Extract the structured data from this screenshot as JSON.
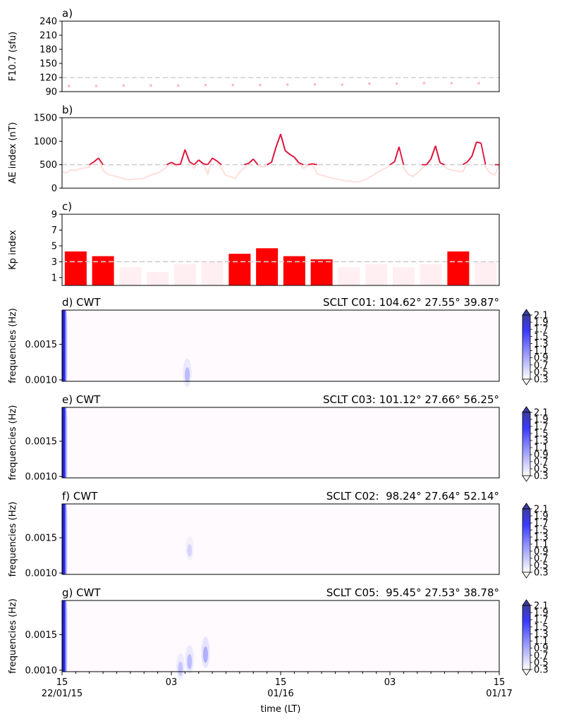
{
  "chart_data": [
    {
      "type": "scatter",
      "panel_label": "a)",
      "ylabel": "F10.7 (sfu)",
      "ylim": [
        90,
        240
      ],
      "yticks": [
        90,
        120,
        150,
        180,
        210,
        240
      ],
      "threshold": 120,
      "color": "#ffb6c1",
      "x_hours": [
        3,
        15,
        27,
        39,
        51,
        63,
        75,
        87,
        99,
        111,
        123,
        135,
        147,
        159,
        171,
        183
      ],
      "values": [
        102,
        102,
        103,
        103,
        103,
        104,
        104,
        104,
        105,
        105,
        105,
        107,
        107,
        108,
        108,
        108
      ]
    },
    {
      "type": "line",
      "panel_label": "b)",
      "ylabel": "AE index (nT)",
      "ylim": [
        0,
        1500
      ],
      "yticks": [
        0,
        500,
        1000,
        1500
      ],
      "threshold": 500,
      "color_low": "#ffdcd8",
      "color_high": "#dc143c",
      "x_hours": [
        0,
        2,
        4,
        6,
        8,
        10,
        12,
        14,
        16,
        18,
        20,
        22,
        24,
        26,
        28,
        30,
        32,
        34,
        36,
        38,
        40,
        42,
        44,
        46,
        48,
        50,
        52,
        54,
        56,
        58,
        60,
        62,
        64,
        66,
        68,
        70,
        72,
        74,
        76,
        78,
        80,
        82,
        84,
        86,
        88,
        90,
        92,
        94,
        96,
        98,
        100,
        102,
        104,
        106,
        108,
        110,
        112,
        114,
        116,
        118,
        120,
        122,
        124,
        126,
        128,
        130,
        132,
        134,
        136,
        138,
        140,
        142,
        144,
        146,
        148,
        150,
        152,
        154,
        156,
        158,
        160,
        162,
        164,
        166,
        168,
        170,
        172,
        174,
        176,
        178,
        180,
        182,
        184,
        186,
        188,
        190,
        192
      ],
      "values": [
        350,
        330,
        390,
        370,
        420,
        430,
        450,
        560,
        640,
        380,
        300,
        270,
        250,
        220,
        190,
        180,
        190,
        200,
        210,
        260,
        300,
        320,
        380,
        450,
        550,
        470,
        510,
        820,
        560,
        420,
        600,
        520,
        300,
        640,
        580,
        420,
        270,
        250,
        200,
        350,
        420,
        530,
        620,
        480,
        450,
        480,
        550,
        880,
        1150,
        800,
        720,
        660,
        540,
        420,
        480,
        520,
        310,
        280,
        250,
        220,
        200,
        180,
        160,
        150,
        140,
        130,
        160,
        200,
        260,
        320,
        380,
        420,
        480,
        560,
        880,
        420,
        300,
        250,
        320,
        420,
        500,
        620,
        900,
        540,
        450,
        400,
        380,
        360,
        350,
        560,
        680,
        980,
        960,
        450,
        320,
        280,
        500
      ]
    },
    {
      "type": "bar",
      "panel_label": "c)",
      "ylabel": "Kp index",
      "ylim": [
        0,
        9
      ],
      "yticks": [
        1,
        3,
        5,
        7,
        9
      ],
      "threshold": 3,
      "color_high": "#ff0000",
      "color_low": "#ffeef2",
      "x_hours": [
        6,
        18,
        30,
        42,
        54,
        66,
        78,
        90,
        102,
        114,
        126,
        138,
        150,
        162,
        174,
        186
      ],
      "values": [
        4.3,
        3.7,
        2.3,
        1.7,
        2.7,
        3.0,
        4.0,
        4.7,
        3.7,
        3.3,
        2.3,
        2.7,
        2.3,
        2.7,
        4.3,
        3.0
      ]
    },
    {
      "type": "heatmap",
      "panel_label": "d) CWT",
      "station_label": "SCLT C01: 104.62° 27.55° 39.87°",
      "ylabel": "frequencies (Hz)",
      "yticks": [
        "0.0010",
        "0.0015"
      ],
      "colorbar_ticks": [
        "0.3",
        "0.5",
        "0.7",
        "0.9",
        "1.1",
        "1.3",
        "1.5",
        "1.7",
        "1.9",
        "2.1"
      ],
      "blobs": [
        {
          "t": 55,
          "f": 0.0011,
          "level": 0.9
        }
      ]
    },
    {
      "type": "heatmap",
      "panel_label": "e) CWT",
      "station_label": "SCLT C03: 101.12° 27.66° 56.25°",
      "ylabel": "frequencies (Hz)",
      "yticks": [
        "0.0010",
        "0.0015"
      ],
      "colorbar_ticks": [
        "0.3",
        "0.5",
        "0.7",
        "0.9",
        "1.1",
        "1.3",
        "1.5",
        "1.7",
        "1.9",
        "2.1"
      ],
      "blobs": []
    },
    {
      "type": "heatmap",
      "panel_label": "f) CWT",
      "station_label": "SCLT C02:  98.24° 27.64° 52.14°",
      "ylabel": "frequencies (Hz)",
      "yticks": [
        "0.0010",
        "0.0015"
      ],
      "colorbar_ticks": [
        "0.3",
        "0.5",
        "0.7",
        "0.9",
        "1.1",
        "1.3",
        "1.5",
        "1.7",
        "1.9",
        "2.1"
      ],
      "blobs": [
        {
          "t": 56,
          "f": 0.00135,
          "level": 0.35
        }
      ]
    },
    {
      "type": "heatmap",
      "panel_label": "g) CWT",
      "station_label": "SCLT C05:  95.45° 27.53° 38.78°",
      "ylabel": "frequencies (Hz)",
      "yticks": [
        "0.0010",
        "0.0015"
      ],
      "colorbar_ticks": [
        "0.3",
        "0.5",
        "0.7",
        "0.9",
        "1.1",
        "1.3",
        "1.5",
        "1.7",
        "1.9",
        "2.1"
      ],
      "blobs": [
        {
          "t": 52,
          "f": 0.00105,
          "level": 0.7
        },
        {
          "t": 56,
          "f": 0.00115,
          "level": 0.9
        },
        {
          "t": 63,
          "f": 0.00125,
          "level": 1.2
        }
      ]
    }
  ],
  "x_axis": {
    "label": "time (LT)",
    "ticks": [
      {
        "hour": 0,
        "line1": "15",
        "line2": "22/01/15"
      },
      {
        "hour": 48,
        "line1": "03",
        "line2": ""
      },
      {
        "hour": 96,
        "line1": "15",
        "line2": "01/16"
      },
      {
        "hour": 144,
        "line1": "03",
        "line2": ""
      },
      {
        "hour": 192,
        "line1": "15",
        "line2": "01/17"
      }
    ]
  }
}
